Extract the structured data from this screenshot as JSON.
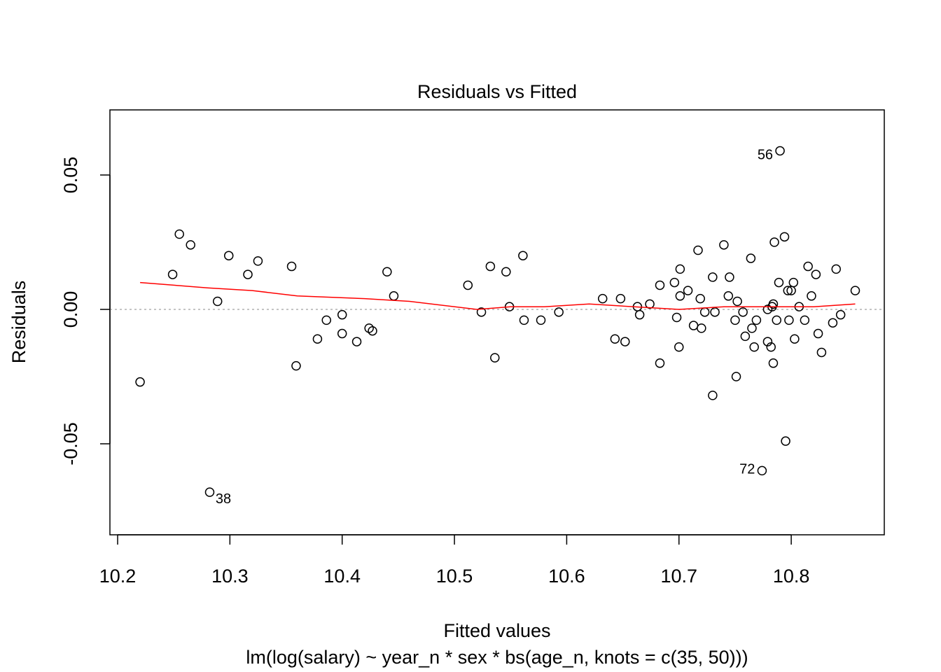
{
  "chart_data": {
    "type": "scatter",
    "title": "Residuals vs Fitted",
    "xlabel": "Fitted values",
    "ylabel": "Residuals",
    "subtitle": "lm(log(salary) ~ year_n * sex * bs(age_n, knots = c(35, 50)))",
    "xlim": [
      10.2,
      10.85
    ],
    "ylim": [
      -0.05,
      0.05
    ],
    "x_ticks": [
      "10.2",
      "10.3",
      "10.4",
      "10.5",
      "10.6",
      "10.7",
      "10.8"
    ],
    "y_ticks": [
      "-0.05",
      "0.00",
      "0.05"
    ],
    "reference_line": {
      "y": 0,
      "style": "dotted",
      "color": "#b0b0b0"
    },
    "point_labels": [
      {
        "label": "56",
        "x": 10.79,
        "y": 0.058
      },
      {
        "label": "72",
        "x": 10.774,
        "y": -0.059
      },
      {
        "label": "38",
        "x": 10.281,
        "y": -0.068
      }
    ],
    "points": [
      [
        10.22,
        -0.027
      ],
      [
        10.249,
        0.013
      ],
      [
        10.255,
        0.028
      ],
      [
        10.265,
        0.024
      ],
      [
        10.282,
        -0.068
      ],
      [
        10.289,
        0.003
      ],
      [
        10.299,
        0.02
      ],
      [
        10.316,
        0.013
      ],
      [
        10.325,
        0.018
      ],
      [
        10.355,
        0.016
      ],
      [
        10.359,
        -0.021
      ],
      [
        10.378,
        -0.011
      ],
      [
        10.386,
        -0.004
      ],
      [
        10.4,
        -0.002
      ],
      [
        10.4,
        -0.009
      ],
      [
        10.413,
        -0.012
      ],
      [
        10.424,
        -0.007
      ],
      [
        10.427,
        -0.008
      ],
      [
        10.44,
        0.014
      ],
      [
        10.446,
        0.005
      ],
      [
        10.512,
        0.009
      ],
      [
        10.524,
        -0.001
      ],
      [
        10.532,
        0.016
      ],
      [
        10.536,
        -0.018
      ],
      [
        10.546,
        0.014
      ],
      [
        10.549,
        0.001
      ],
      [
        10.561,
        0.02
      ],
      [
        10.562,
        -0.004
      ],
      [
        10.577,
        -0.004
      ],
      [
        10.593,
        -0.001
      ],
      [
        10.632,
        0.004
      ],
      [
        10.643,
        -0.011
      ],
      [
        10.648,
        0.004
      ],
      [
        10.652,
        -0.012
      ],
      [
        10.663,
        0.001
      ],
      [
        10.665,
        -0.002
      ],
      [
        10.674,
        0.002
      ],
      [
        10.683,
        0.009
      ],
      [
        10.683,
        -0.02
      ],
      [
        10.696,
        0.01
      ],
      [
        10.698,
        -0.003
      ],
      [
        10.7,
        -0.014
      ],
      [
        10.701,
        0.015
      ],
      [
        10.701,
        0.005
      ],
      [
        10.708,
        0.007
      ],
      [
        10.713,
        -0.006
      ],
      [
        10.717,
        0.022
      ],
      [
        10.719,
        0.004
      ],
      [
        10.72,
        -0.007
      ],
      [
        10.723,
        -0.001
      ],
      [
        10.73,
        -0.032
      ],
      [
        10.73,
        0.012
      ],
      [
        10.732,
        -0.001
      ],
      [
        10.74,
        0.024
      ],
      [
        10.744,
        0.005
      ],
      [
        10.745,
        0.012
      ],
      [
        10.75,
        -0.004
      ],
      [
        10.751,
        -0.025
      ],
      [
        10.752,
        0.003
      ],
      [
        10.757,
        -0.001
      ],
      [
        10.759,
        -0.01
      ],
      [
        10.764,
        0.019
      ],
      [
        10.765,
        -0.007
      ],
      [
        10.767,
        -0.014
      ],
      [
        10.769,
        -0.004
      ],
      [
        10.774,
        -0.06
      ],
      [
        10.779,
        0.0
      ],
      [
        10.779,
        -0.012
      ],
      [
        10.782,
        -0.014
      ],
      [
        10.783,
        0.001
      ],
      [
        10.784,
        0.002
      ],
      [
        10.784,
        -0.02
      ],
      [
        10.785,
        0.025
      ],
      [
        10.787,
        -0.004
      ],
      [
        10.789,
        0.01
      ],
      [
        10.79,
        0.059
      ],
      [
        10.794,
        0.027
      ],
      [
        10.795,
        -0.049
      ],
      [
        10.797,
        0.007
      ],
      [
        10.798,
        -0.004
      ],
      [
        10.8,
        0.007
      ],
      [
        10.802,
        0.01
      ],
      [
        10.803,
        -0.011
      ],
      [
        10.807,
        0.001
      ],
      [
        10.812,
        -0.004
      ],
      [
        10.815,
        0.016
      ],
      [
        10.818,
        0.005
      ],
      [
        10.822,
        0.013
      ],
      [
        10.824,
        -0.009
      ],
      [
        10.827,
        -0.016
      ],
      [
        10.837,
        -0.005
      ],
      [
        10.84,
        0.015
      ],
      [
        10.844,
        -0.002
      ],
      [
        10.857,
        0.007
      ]
    ],
    "smooth_line": [
      [
        10.22,
        0.01
      ],
      [
        10.25,
        0.009
      ],
      [
        10.28,
        0.008
      ],
      [
        10.32,
        0.007
      ],
      [
        10.36,
        0.005
      ],
      [
        10.42,
        0.004
      ],
      [
        10.46,
        0.003
      ],
      [
        10.52,
        0.0
      ],
      [
        10.55,
        0.001
      ],
      [
        10.58,
        0.001
      ],
      [
        10.62,
        0.002
      ],
      [
        10.66,
        0.001
      ],
      [
        10.7,
        0.0
      ],
      [
        10.74,
        0.001
      ],
      [
        10.78,
        0.001
      ],
      [
        10.82,
        0.001
      ],
      [
        10.857,
        0.002
      ]
    ],
    "colors": {
      "smooth": "#ff0000",
      "points": "#000000"
    }
  }
}
